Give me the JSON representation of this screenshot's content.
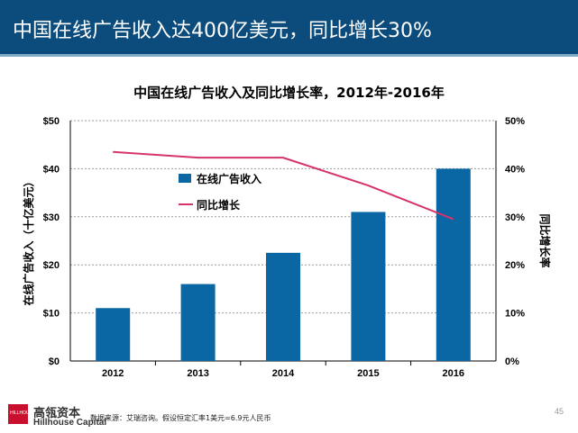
{
  "header": {
    "title": "中国在线广告收入达400亿美元，同比增长30%"
  },
  "chart_data": {
    "type": "bar+line",
    "title": "中国在线广告收入及同比增长率，2012年-2016年",
    "categories": [
      "2012",
      "2013",
      "2014",
      "2015",
      "2016"
    ],
    "series": [
      {
        "name": "在线广告收入",
        "type": "bar",
        "axis": "left",
        "values": [
          11,
          16,
          22.5,
          31,
          40
        ],
        "color": "#0a67a3"
      },
      {
        "name": "同比增长",
        "type": "line",
        "axis": "right",
        "values": [
          43.5,
          42.3,
          42.3,
          36.5,
          29.5
        ],
        "color": "#d6336c"
      }
    ],
    "ylabel": "在线广告收入（十亿美元）",
    "y2label": "同比增长率",
    "ylim": [
      0,
      50
    ],
    "y2lim": [
      0,
      50
    ],
    "yticks": [
      "$0",
      "$10",
      "$20",
      "$30",
      "$40",
      "$50"
    ],
    "y2ticks": [
      "0%",
      "10%",
      "20%",
      "30%",
      "40%",
      "50%"
    ],
    "grid": true,
    "legend": "upper-center"
  },
  "footer": {
    "logo_text": "HILLHOUSE",
    "company_cn": "高瓴资本",
    "company_en": "Hillhouse Capital",
    "source": "数据来源：艾瑞咨询。假设恒定汇率1美元=6.9元人民币",
    "page": "45"
  }
}
